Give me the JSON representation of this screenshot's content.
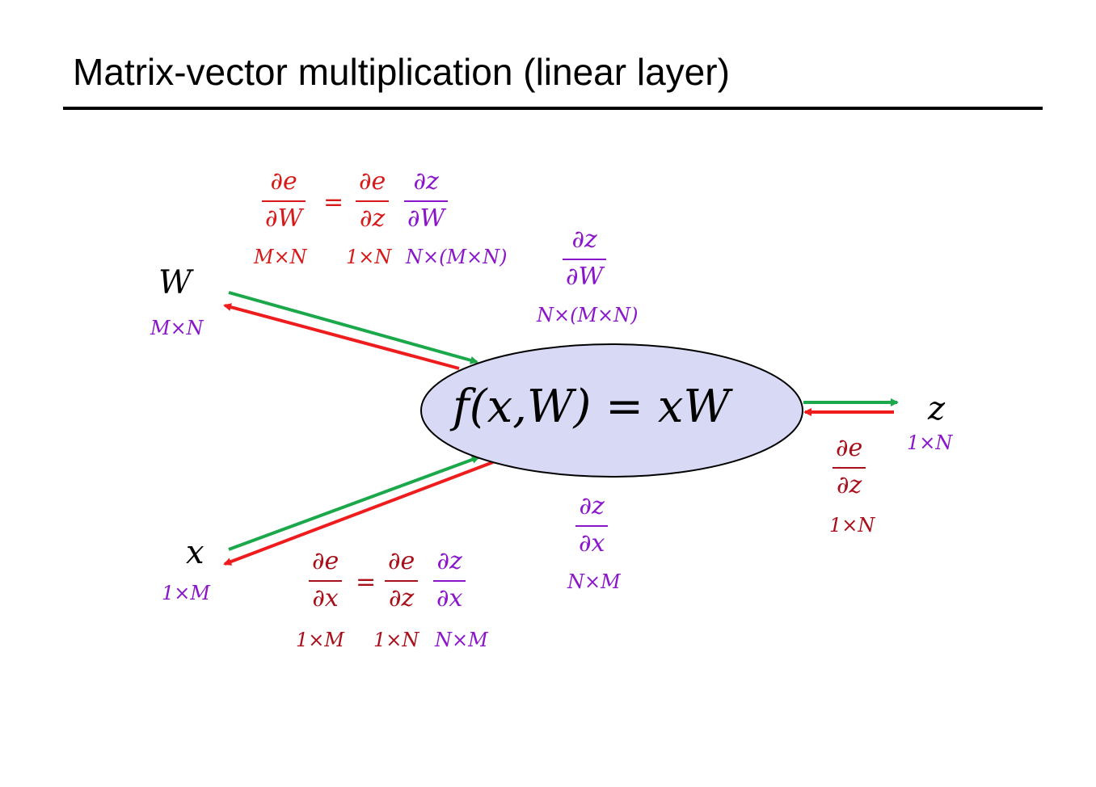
{
  "title": "Matrix-vector multiplication (linear layer)",
  "node": {
    "function": "f(x,W) = xW"
  },
  "inputs": {
    "W": {
      "symbol": "W",
      "dim": "M×N"
    },
    "x": {
      "symbol": "x",
      "dim": "1×M"
    }
  },
  "output": {
    "symbol": "z",
    "dim": "1×N"
  },
  "local_grads": {
    "dz_dW": {
      "num": "∂z",
      "den": "∂W",
      "dim": "N×(M×N)"
    },
    "dz_dx": {
      "num": "∂z",
      "den": "∂x",
      "dim": "N×M"
    }
  },
  "upstream": {
    "num": "∂e",
    "den": "∂z",
    "dim": "1×N"
  },
  "chain_W": {
    "lhs": {
      "num": "∂e",
      "den": "∂W",
      "dim": "M×N"
    },
    "eq": "=",
    "t1": {
      "num": "∂e",
      "den": "∂z",
      "dim": "1×N"
    },
    "t2": {
      "num": "∂z",
      "den": "∂W",
      "dim": "N×(M×N)"
    }
  },
  "chain_x": {
    "lhs": {
      "num": "∂e",
      "den": "∂x",
      "dim": "1×M"
    },
    "eq": "=",
    "t1": {
      "num": "∂e",
      "den": "∂z",
      "dim": "1×N"
    },
    "t2": {
      "num": "∂z",
      "den": "∂x",
      "dim": "N×M"
    }
  },
  "colors": {
    "forward": "#1aa84a",
    "backward": "#ee1c1c",
    "node_fill": "#d7d9f5",
    "dims": "#8a16c9",
    "grad": "#d61a1a"
  }
}
